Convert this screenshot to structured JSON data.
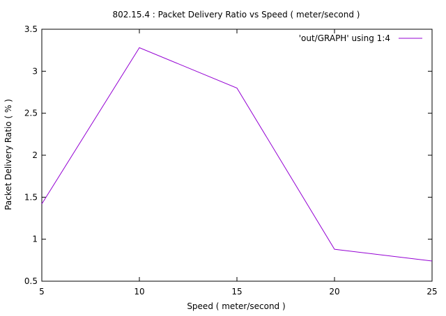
{
  "chart_data": {
    "type": "line",
    "title": "802.15.4 : Packet Delivery Ratio vs Speed ( meter/second )",
    "xlabel": "Speed ( meter/second )",
    "ylabel": "Packet Delivery Ratio ( % )",
    "xlim": [
      5,
      25
    ],
    "ylim": [
      0.5,
      3.5
    ],
    "x_ticks": [
      "5",
      "10",
      "15",
      "20",
      "25"
    ],
    "y_ticks": [
      "0.5",
      "1",
      "1.5",
      "2",
      "2.5",
      "3",
      "3.5"
    ],
    "grid": false,
    "legend_position": "top-right",
    "series": [
      {
        "name": "'out/GRAPH' using 1:4",
        "color": "#9400d3",
        "x": [
          5,
          10,
          15,
          20,
          25
        ],
        "y": [
          1.42,
          3.28,
          2.8,
          0.88,
          0.74
        ]
      }
    ]
  }
}
